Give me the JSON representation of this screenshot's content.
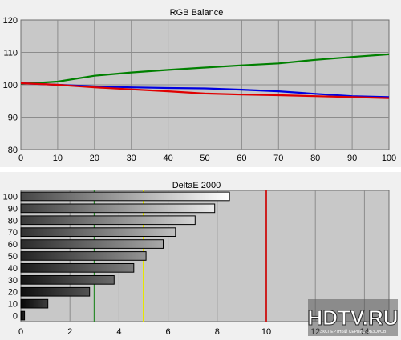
{
  "chart_data": [
    {
      "type": "line",
      "title": "RGB Balance",
      "xlabel": "",
      "ylabel": "",
      "xlim": [
        0,
        100
      ],
      "ylim": [
        80,
        120
      ],
      "x_ticks": [
        0,
        10,
        20,
        30,
        40,
        50,
        60,
        70,
        80,
        90,
        100
      ],
      "y_ticks": [
        80,
        90,
        100,
        110,
        120
      ],
      "grid": true,
      "x": [
        0,
        10,
        20,
        30,
        40,
        50,
        60,
        70,
        80,
        90,
        100
      ],
      "series": [
        {
          "color": "#008000",
          "values": [
            100.3,
            101.0,
            102.8,
            103.8,
            104.6,
            105.3,
            106.0,
            106.6,
            107.7,
            108.6,
            109.4
          ]
        },
        {
          "color": "#0000e0",
          "values": [
            100.5,
            100.0,
            99.5,
            99.2,
            99.0,
            98.9,
            98.5,
            98.0,
            97.2,
            96.5,
            96.2
          ]
        },
        {
          "color": "#e00000",
          "values": [
            100.5,
            100.0,
            99.2,
            98.6,
            98.0,
            97.3,
            97.0,
            96.8,
            96.5,
            96.2,
            95.9
          ]
        }
      ]
    },
    {
      "type": "bar",
      "orientation": "horizontal",
      "title": "DeltaE 2000",
      "xlabel": "",
      "ylabel": "",
      "categories": [
        "100",
        "90",
        "80",
        "70",
        "60",
        "50",
        "40",
        "30",
        "20",
        "10",
        "0"
      ],
      "values": [
        8.5,
        7.9,
        7.1,
        6.3,
        5.8,
        5.1,
        4.6,
        3.8,
        2.8,
        1.1,
        0.15
      ],
      "xlim": [
        0,
        15
      ],
      "x_ticks": [
        0,
        2,
        4,
        6,
        8,
        10,
        12,
        14
      ],
      "grid": true,
      "reference_lines": [
        {
          "value": 3,
          "color": "#2e8b2e"
        },
        {
          "value": 5,
          "color": "#e6e600"
        },
        {
          "value": 10,
          "color": "#cc2222"
        }
      ]
    }
  ],
  "watermark": {
    "text": "HDTV.RU",
    "subtext": "ЭКСПЕРТНЫЙ СЕРВИС ОБЗОРОВ"
  }
}
